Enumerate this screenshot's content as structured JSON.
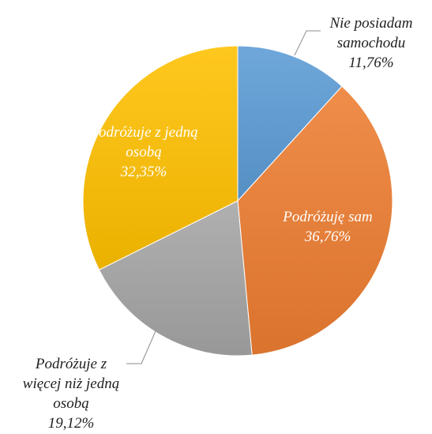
{
  "chart_data": {
    "type": "pie",
    "start_angle_deg": 0,
    "direction": "clockwise",
    "slices": [
      {
        "name": "Nie posiadam samochodu",
        "value": 11.76,
        "percent_label": "11,76%",
        "color": "#5b9bd5",
        "label_lines": [
          "Nie posiadam",
          "samochodu"
        ]
      },
      {
        "name": "Podróżuję sam",
        "value": 36.76,
        "percent_label": "36,76%",
        "color": "#ed7d31",
        "label_lines": [
          "Podróżuję sam"
        ]
      },
      {
        "name": "Podróżuje z więcej niż jedną osobą",
        "value": 19.12,
        "percent_label": "19,12%",
        "color": "#a5a5a5",
        "label_lines": [
          "Podróżuje z",
          "więcej niż jedną",
          "osobą"
        ]
      },
      {
        "name": "Podróżuje z jedną osobą",
        "value": 32.35,
        "percent_label": "32,35%",
        "color": "#ffc000",
        "label_lines": [
          "Podróżuje z jedną",
          "osobą"
        ]
      }
    ]
  }
}
